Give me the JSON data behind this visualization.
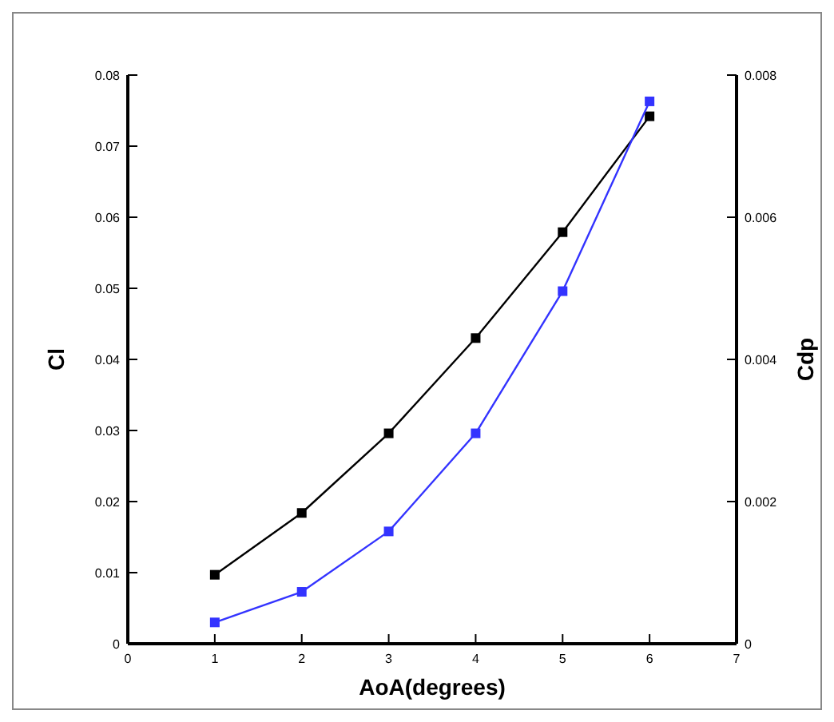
{
  "chart_data": {
    "type": "line",
    "xlabel": "AoA(degrees)",
    "ylabel": "Cl",
    "y2label": "Cdp",
    "x": [
      1,
      2,
      3,
      4,
      5,
      6
    ],
    "series": [
      {
        "color": "#000000",
        "values": [
          0.0097,
          0.0184,
          0.0296,
          0.043,
          0.0579,
          0.0742
        ]
      },
      {
        "color": "#3333ff",
        "axis": "y2",
        "values": [
          0.0003,
          0.00073,
          0.00158,
          0.00296,
          0.00496,
          0.00763
        ]
      }
    ],
    "xlim": [
      0,
      7
    ],
    "xticks": [
      0,
      1,
      2,
      3,
      4,
      5,
      6,
      7
    ],
    "ylim": [
      0,
      0.08
    ],
    "yticks": [
      0,
      0.01,
      0.02,
      0.03,
      0.04,
      0.05,
      0.06,
      0.07,
      0.08
    ],
    "y2lim": [
      0,
      0.008
    ],
    "y2ticks": [
      0,
      0.002,
      0.004,
      0.006,
      0.008
    ],
    "marker": "square",
    "line_style": "solid",
    "grid": false
  }
}
